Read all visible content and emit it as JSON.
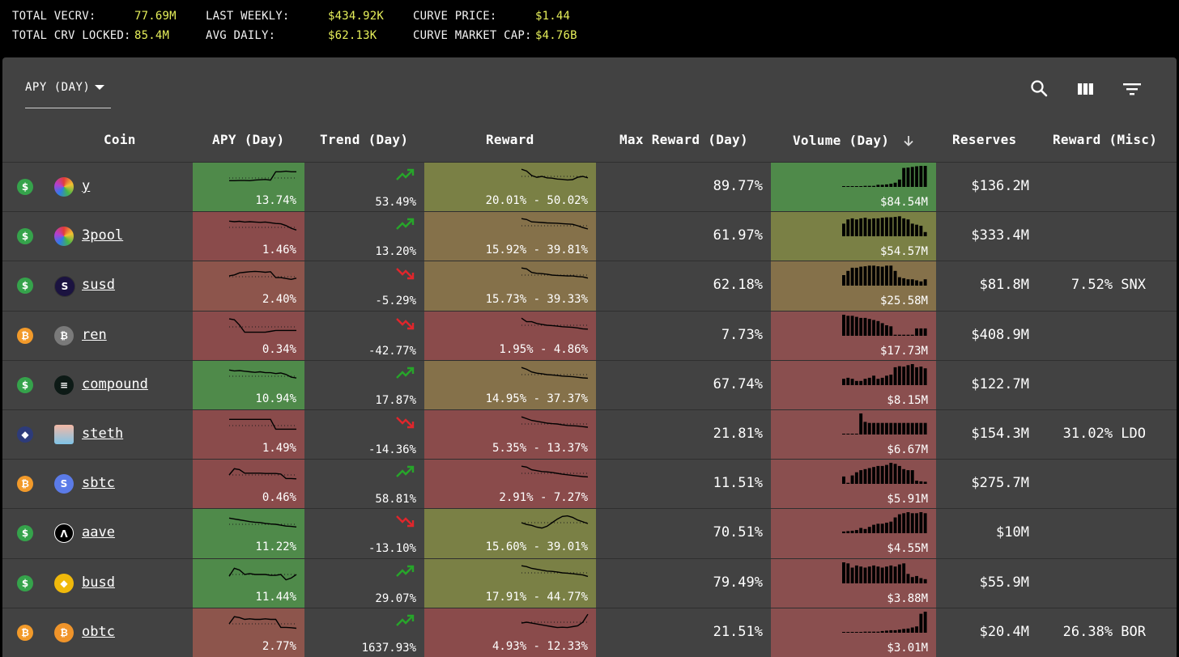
{
  "stats": {
    "total_vecrv_label": "TOTAL VECRV:",
    "total_vecrv_value": "77.69M",
    "total_crv_locked_label": "TOTAL CRV LOCKED:",
    "total_crv_locked_value": "85.4M",
    "last_weekly_label": "LAST WEEKLY:",
    "last_weekly_value": "$434.92K",
    "avg_daily_label": "AVG DAILY:",
    "avg_daily_value": "$62.13K",
    "curve_price_label": "CURVE PRICE:",
    "curve_price_value": "$1.44",
    "curve_market_cap_label": "CURVE MARKET CAP:",
    "curve_market_cap_value": "$4.76B"
  },
  "toolbar": {
    "view_select": "APY (DAY)",
    "search_icon": "search-icon",
    "columns_icon": "view-column-icon",
    "filter_icon": "filter-list-icon"
  },
  "columns": {
    "coin": "Coin",
    "apy": "APY (Day)",
    "trend": "Trend (Day)",
    "reward": "Reward",
    "max_reward": "Max Reward (Day)",
    "volume": "Volume (Day)",
    "reserves": "Reserves",
    "reward_misc": "Reward (Misc)"
  },
  "colors": {
    "green": "#4f8a4a",
    "olive": "#7a8045",
    "tan": "#85714a",
    "red": "#8a4b4b",
    "red2": "#8a4f4f",
    "salmon": "#8d554c",
    "up": "#27a52a",
    "down": "#e0262c"
  },
  "rows": [
    {
      "currency": "usd",
      "coin": "y",
      "apy": "13.74%",
      "trend": "53.49%",
      "trend_dir": "up",
      "reward": "20.01% - 50.02%",
      "max_reward": "89.77%",
      "volume": "$84.54M",
      "reserves": "$136.2M",
      "reward_misc": "",
      "apy_color": "green",
      "reward_color": "olive",
      "volume_color": "green",
      "apy_series": [
        0.35,
        0.35,
        0.36,
        0.36,
        0.35,
        0.38,
        0.4,
        0.42,
        0.38,
        0.85,
        0.85,
        0.88,
        0.85,
        0.85
      ],
      "reward_series": [
        0.9,
        0.8,
        0.55,
        0.45,
        0.5,
        0.42,
        0.4,
        0.35,
        0.33,
        0.3,
        0.32,
        0.45,
        0.5,
        0.42
      ],
      "volume_bars": [
        0.02,
        0.02,
        0.03,
        0.03,
        0.04,
        0.05,
        0.05,
        0.05,
        0.1,
        0.1,
        0.12,
        0.15,
        0.2,
        0.35,
        0.9,
        0.92,
        0.95,
        0.98,
        1.0,
        1.0
      ]
    },
    {
      "currency": "usd",
      "coin": "3pool",
      "apy": "1.46%",
      "trend": "13.20%",
      "trend_dir": "up",
      "reward": "15.92% - 39.81%",
      "max_reward": "61.97%",
      "volume": "$54.57M",
      "reserves": "$333.4M",
      "reward_misc": "",
      "apy_color": "red",
      "reward_color": "tan",
      "volume_color": "olive",
      "apy_series": [
        0.85,
        0.82,
        0.84,
        0.8,
        0.82,
        0.8,
        0.78,
        0.8,
        0.76,
        0.72,
        0.7,
        0.6,
        0.45,
        0.35
      ],
      "reward_series": [
        0.9,
        0.85,
        0.72,
        0.7,
        0.68,
        0.66,
        0.65,
        0.64,
        0.62,
        0.6,
        0.58,
        0.5,
        0.4,
        0.32
      ],
      "volume_bars": [
        0.6,
        0.8,
        0.85,
        0.8,
        0.85,
        0.88,
        0.82,
        0.85,
        0.85,
        0.88,
        0.9,
        0.9,
        0.92,
        0.95,
        0.85,
        0.8,
        0.6,
        0.55,
        0.5,
        0.2
      ]
    },
    {
      "currency": "usd",
      "coin": "susd",
      "apy": "2.40%",
      "trend": "-5.29%",
      "trend_dir": "down",
      "reward": "15.73% - 39.33%",
      "max_reward": "62.18%",
      "volume": "$25.58M",
      "reserves": "$81.8M",
      "reward_misc": "7.52% SNX",
      "apy_color": "salmon",
      "reward_color": "tan",
      "volume_color": "tan",
      "apy_series": [
        0.55,
        0.6,
        0.72,
        0.75,
        0.78,
        0.8,
        0.78,
        0.75,
        0.78,
        0.45,
        0.45,
        0.4,
        0.35,
        0.42
      ],
      "reward_series": [
        0.9,
        0.85,
        0.65,
        0.6,
        0.58,
        0.55,
        0.5,
        0.48,
        0.47,
        0.45,
        0.45,
        0.42,
        0.4,
        0.33
      ],
      "volume_bars": [
        0.5,
        0.7,
        0.85,
        0.85,
        0.9,
        0.92,
        0.95,
        0.95,
        0.92,
        0.9,
        0.95,
        0.95,
        0.7,
        0.4,
        0.35,
        0.3,
        0.3,
        0.25,
        0.2,
        0.3
      ]
    },
    {
      "currency": "btc",
      "coin": "ren",
      "apy": "0.34%",
      "trend": "-42.77%",
      "trend_dir": "down",
      "reward": "1.95% - 4.86%",
      "max_reward": "7.73%",
      "volume": "$17.73M",
      "reserves": "$408.9M",
      "reward_misc": "",
      "apy_color": "red",
      "reward_color": "red",
      "volume_color": "red2",
      "apy_series": [
        0.95,
        0.9,
        0.6,
        0.2,
        0.2,
        0.2,
        0.2,
        0.2,
        0.25,
        0.3,
        0.3,
        0.3,
        0.3,
        0.3
      ],
      "reward_series": [
        0.9,
        0.7,
        0.7,
        0.6,
        0.55,
        0.5,
        0.48,
        0.45,
        0.42,
        0.4,
        0.38,
        0.35,
        0.3,
        0.28
      ],
      "volume_bars": [
        1.0,
        0.95,
        0.95,
        0.9,
        0.85,
        0.85,
        0.8,
        0.75,
        0.7,
        0.6,
        0.5,
        0.45,
        0.05,
        0.05,
        0.05,
        0.05,
        0.05,
        0.35,
        0.35,
        0.35
      ]
    },
    {
      "currency": "usd",
      "coin": "compound",
      "apy": "10.94%",
      "trend": "17.87%",
      "trend_dir": "up",
      "reward": "14.95% - 37.37%",
      "max_reward": "67.74%",
      "volume": "$8.15M",
      "reserves": "$122.7M",
      "reward_misc": "",
      "apy_color": "green",
      "reward_color": "tan",
      "volume_color": "red2",
      "apy_series": [
        0.85,
        0.8,
        0.82,
        0.78,
        0.75,
        0.72,
        0.75,
        0.7,
        0.7,
        0.65,
        0.68,
        0.6,
        0.45,
        0.4
      ],
      "reward_series": [
        0.9,
        0.8,
        0.65,
        0.58,
        0.55,
        0.5,
        0.48,
        0.45,
        0.42,
        0.4,
        0.38,
        0.35,
        0.32,
        0.3
      ],
      "volume_bars": [
        0.3,
        0.35,
        0.3,
        0.2,
        0.2,
        0.3,
        0.35,
        0.45,
        0.3,
        0.35,
        0.45,
        0.5,
        0.85,
        0.9,
        0.88,
        0.95,
        1.0,
        0.85,
        0.88,
        0.8
      ]
    },
    {
      "currency": "eth",
      "coin": "steth",
      "apy": "1.49%",
      "trend": "-14.36%",
      "trend_dir": "down",
      "reward": "5.35% - 13.37%",
      "max_reward": "21.81%",
      "volume": "$6.67M",
      "reserves": "$154.3M",
      "reward_misc": "31.02% LDO",
      "apy_color": "red",
      "reward_color": "red",
      "volume_color": "red2",
      "apy_series": [
        0.85,
        0.85,
        0.85,
        0.85,
        0.85,
        0.85,
        0.85,
        0.85,
        0.85,
        0.3,
        0.3,
        0.3,
        0.3,
        0.3
      ],
      "reward_series": [
        0.9,
        0.8,
        0.7,
        0.65,
        0.6,
        0.55,
        0.52,
        0.5,
        0.45,
        0.42,
        0.4,
        0.38,
        0.35,
        0.32
      ],
      "volume_bars": [
        0.02,
        0.02,
        0.02,
        0.02,
        1.0,
        0.6,
        0.55,
        0.55,
        0.55,
        0.55,
        0.55,
        0.55,
        0.55,
        0.55,
        0.55,
        0.55,
        0.55,
        0.55,
        0.55,
        0.55
      ]
    },
    {
      "currency": "btc",
      "coin": "sbtc",
      "apy": "0.46%",
      "trend": "58.81%",
      "trend_dir": "up",
      "reward": "2.91% - 7.27%",
      "max_reward": "11.51%",
      "volume": "$5.91M",
      "reserves": "$275.7M",
      "reward_misc": "",
      "apy_color": "red",
      "reward_color": "red",
      "volume_color": "red2",
      "apy_series": [
        0.5,
        0.85,
        0.8,
        0.6,
        0.6,
        0.6,
        0.6,
        0.58,
        0.58,
        0.58,
        0.55,
        0.3,
        0.3,
        0.28
      ],
      "reward_series": [
        0.9,
        0.85,
        0.7,
        0.65,
        0.6,
        0.58,
        0.55,
        0.5,
        0.45,
        0.42,
        0.38,
        0.35,
        0.32,
        0.3
      ],
      "volume_bars": [
        0.35,
        0.05,
        0.4,
        0.55,
        0.65,
        0.7,
        0.75,
        0.8,
        0.85,
        0.85,
        0.9,
        1.0,
        0.95,
        0.85,
        0.7,
        0.65,
        0.65,
        0.15,
        0.12,
        0.1
      ]
    },
    {
      "currency": "usd",
      "coin": "aave",
      "apy": "11.22%",
      "trend": "-13.10%",
      "trend_dir": "down",
      "reward": "15.60% - 39.01%",
      "max_reward": "70.51%",
      "volume": "$4.55M",
      "reserves": "$10M",
      "reward_misc": "",
      "apy_color": "green",
      "reward_color": "olive",
      "volume_color": "red2",
      "apy_series": [
        0.85,
        0.8,
        0.75,
        0.7,
        0.65,
        0.62,
        0.6,
        0.55,
        0.52,
        0.5,
        0.45,
        0.4,
        0.38,
        0.35
      ],
      "reward_series": [
        0.5,
        0.4,
        0.35,
        0.25,
        0.2,
        0.3,
        0.5,
        0.7,
        0.85,
        0.88,
        0.8,
        0.65,
        0.55,
        0.45
      ],
      "volume_bars": [
        0.08,
        0.1,
        0.12,
        0.15,
        0.25,
        0.2,
        0.3,
        0.4,
        0.45,
        0.45,
        0.5,
        0.55,
        0.75,
        0.9,
        0.95,
        1.0,
        0.95,
        0.95,
        1.0,
        0.95
      ]
    },
    {
      "currency": "usd",
      "coin": "busd",
      "apy": "11.44%",
      "trend": "29.07%",
      "trend_dir": "up",
      "reward": "17.91% - 44.77%",
      "max_reward": "79.49%",
      "volume": "$3.88M",
      "reserves": "$55.9M",
      "reward_misc": "",
      "apy_color": "green",
      "reward_color": "olive",
      "volume_color": "red2",
      "apy_series": [
        0.4,
        0.85,
        0.75,
        0.5,
        0.55,
        0.5,
        0.5,
        0.5,
        0.45,
        0.45,
        0.5,
        0.2,
        0.3,
        0.5
      ],
      "reward_series": [
        0.9,
        0.85,
        0.75,
        0.7,
        0.65,
        0.6,
        0.58,
        0.55,
        0.5,
        0.48,
        0.45,
        0.42,
        0.38,
        0.3
      ],
      "volume_bars": [
        1.0,
        0.95,
        0.75,
        0.85,
        0.8,
        0.75,
        0.8,
        0.85,
        0.8,
        0.75,
        0.8,
        0.85,
        0.8,
        0.9,
        0.95,
        0.45,
        0.3,
        0.35,
        0.25,
        0.2
      ]
    },
    {
      "currency": "btc",
      "coin": "obtc",
      "apy": "2.77%",
      "trend": "1637.93%",
      "trend_dir": "up",
      "reward": "4.93% - 12.33%",
      "max_reward": "21.51%",
      "volume": "$3.01M",
      "reserves": "$20.4M",
      "reward_misc": "26.38% BOR",
      "apy_color": "salmon",
      "reward_color": "red",
      "volume_color": "red2",
      "apy_series": [
        0.5,
        0.9,
        0.85,
        0.75,
        0.78,
        0.75,
        0.75,
        0.78,
        0.75,
        0.75,
        0.3,
        0.3,
        0.28,
        0.25
      ],
      "reward_series": [
        0.45,
        0.5,
        0.45,
        0.4,
        0.35,
        0.3,
        0.25,
        0.2,
        0.22,
        0.2,
        0.25,
        0.3,
        0.5,
        0.95
      ],
      "volume_bars": [
        0.02,
        0.02,
        0.02,
        0.03,
        0.03,
        0.05,
        0.05,
        0.05,
        0.05,
        0.08,
        0.1,
        0.12,
        0.12,
        0.15,
        0.18,
        0.2,
        0.25,
        0.3,
        0.9,
        1.0
      ]
    }
  ]
}
